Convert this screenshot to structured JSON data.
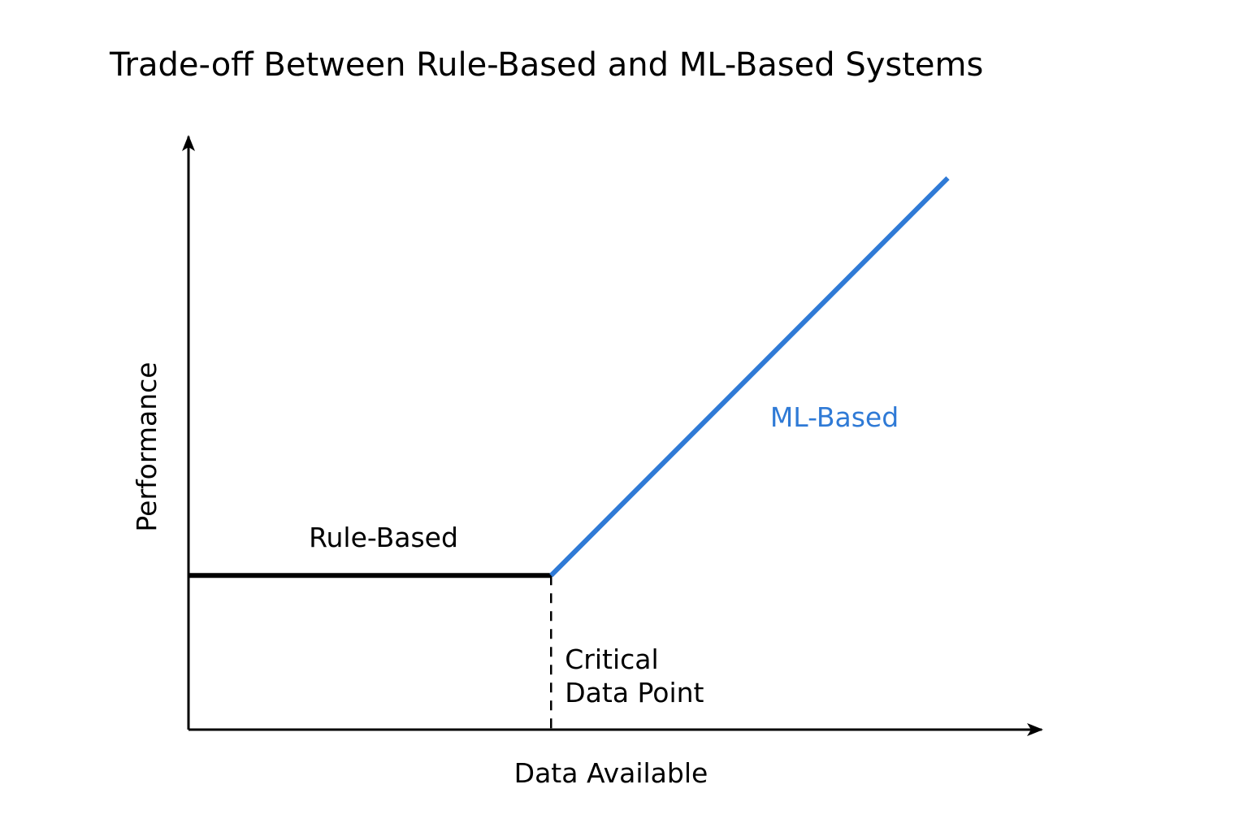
{
  "chart_data": {
    "type": "line",
    "title": "Trade-off Between Rule-Based and ML-Based Systems",
    "xlabel": "Data Available",
    "ylabel": "Performance",
    "xlim": [
      0,
      10
    ],
    "ylim": [
      0,
      10
    ],
    "grid": false,
    "legend": "none",
    "series": [
      {
        "name": "Rule-Based",
        "color": "#000000",
        "x": [
          0,
          4.25
        ],
        "y": [
          2.6,
          2.6
        ]
      },
      {
        "name": "ML-Based",
        "color": "#2f7ad6",
        "x": [
          4.25,
          8.9
        ],
        "y": [
          2.6,
          9.3
        ]
      }
    ],
    "annotations": [
      {
        "label_lines": [
          "Critical",
          "Data Point"
        ],
        "x": 4.25,
        "style": "dashed-vertical"
      }
    ]
  }
}
